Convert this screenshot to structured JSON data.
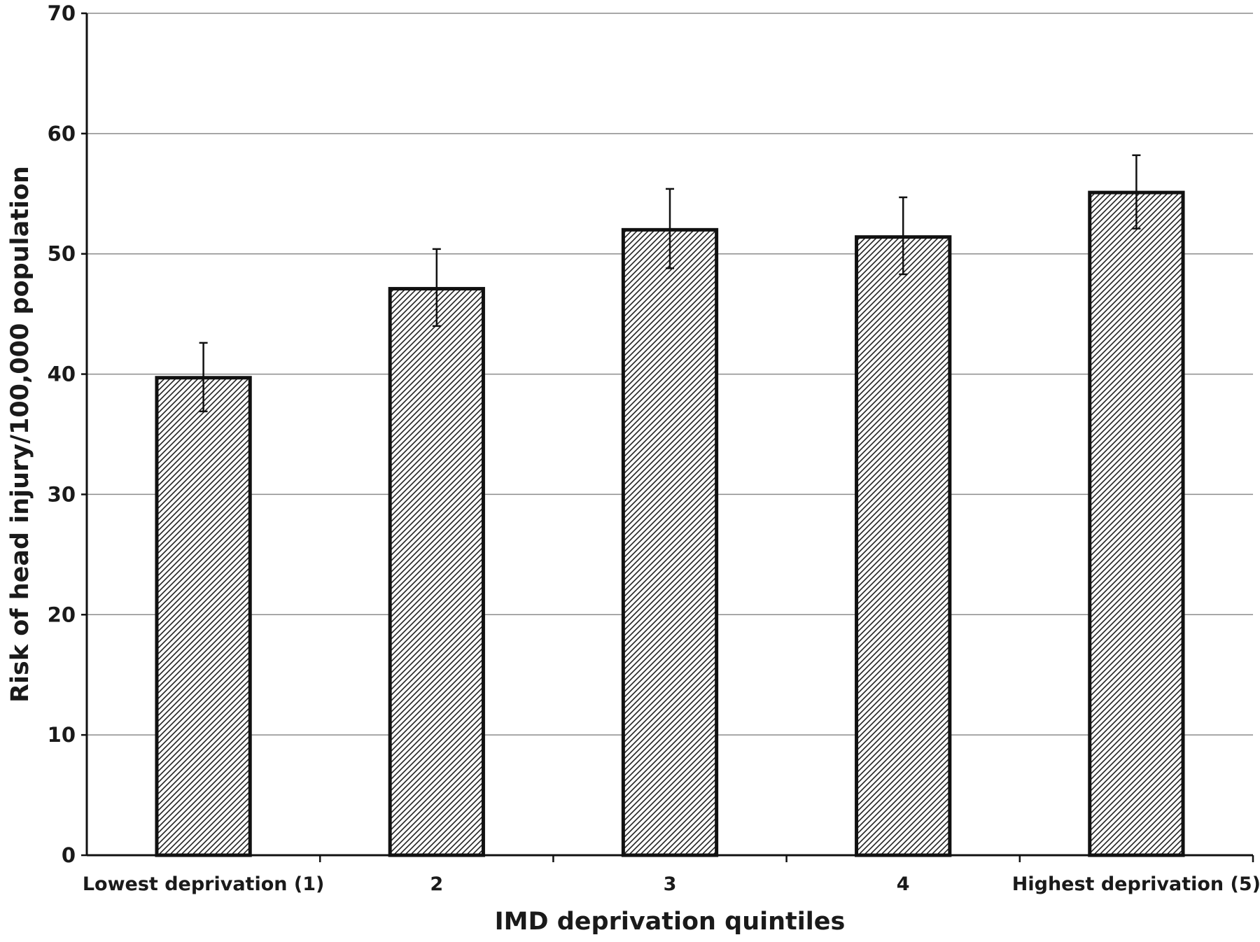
{
  "chart_data": {
    "type": "bar",
    "title": "",
    "xlabel": "IMD deprivation quintiles",
    "ylabel": "Risk of head injury/100,000 population",
    "categories": [
      "Lowest deprivation (1)",
      "2",
      "3",
      "4",
      "Highest deprivation (5)"
    ],
    "values": [
      39.7,
      47.1,
      52.0,
      51.4,
      55.1
    ],
    "error_upper": [
      42.6,
      50.4,
      55.4,
      54.7,
      58.2
    ],
    "error_lower": [
      36.9,
      44.0,
      48.8,
      48.3,
      52.1
    ],
    "ylim": [
      0,
      70
    ],
    "yticks": [
      "0",
      "10",
      "20",
      "30",
      "40",
      "50",
      "60",
      "70"
    ],
    "grid": true,
    "legend": "none",
    "bar_fill": "hatched",
    "colors": {
      "bar_outline": "#111111",
      "hatch": "#222222",
      "bar_background": "#ffffff",
      "gridline": "#8c8c8c",
      "axis": "#111111"
    }
  }
}
